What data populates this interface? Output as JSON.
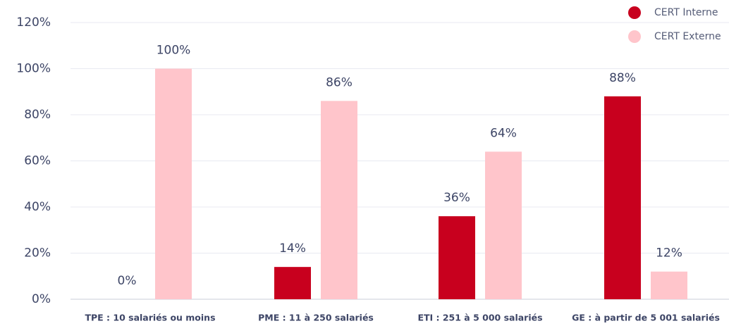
{
  "chart_data": {
    "type": "bar",
    "categories": [
      "TPE : 10 salariés ou moins",
      "PME : 11 à 250 salariés",
      "ETI : 251 à 5 000 salariés",
      "GE : à partir de 5 001 salariés"
    ],
    "series": [
      {
        "name": "CERT Interne",
        "color": "#c8001e",
        "values": [
          0,
          14,
          36,
          88
        ],
        "value_labels": [
          "0%",
          "14%",
          "36%",
          "88%"
        ]
      },
      {
        "name": "CERT Externe",
        "color": "#ffc5cb",
        "values": [
          100,
          86,
          64,
          12
        ],
        "value_labels": [
          "100%",
          "86%",
          "64%",
          "12%"
        ]
      }
    ],
    "ylim": [
      0,
      120
    ],
    "yticks": [
      {
        "value": 0,
        "label": "0%"
      },
      {
        "value": 20,
        "label": "20%"
      },
      {
        "value": 40,
        "label": "40%"
      },
      {
        "value": 60,
        "label": "60%"
      },
      {
        "value": 80,
        "label": "80%"
      },
      {
        "value": 100,
        "label": "100%"
      },
      {
        "value": 120,
        "label": "120%"
      }
    ],
    "grid": true,
    "legend": "top-right"
  }
}
